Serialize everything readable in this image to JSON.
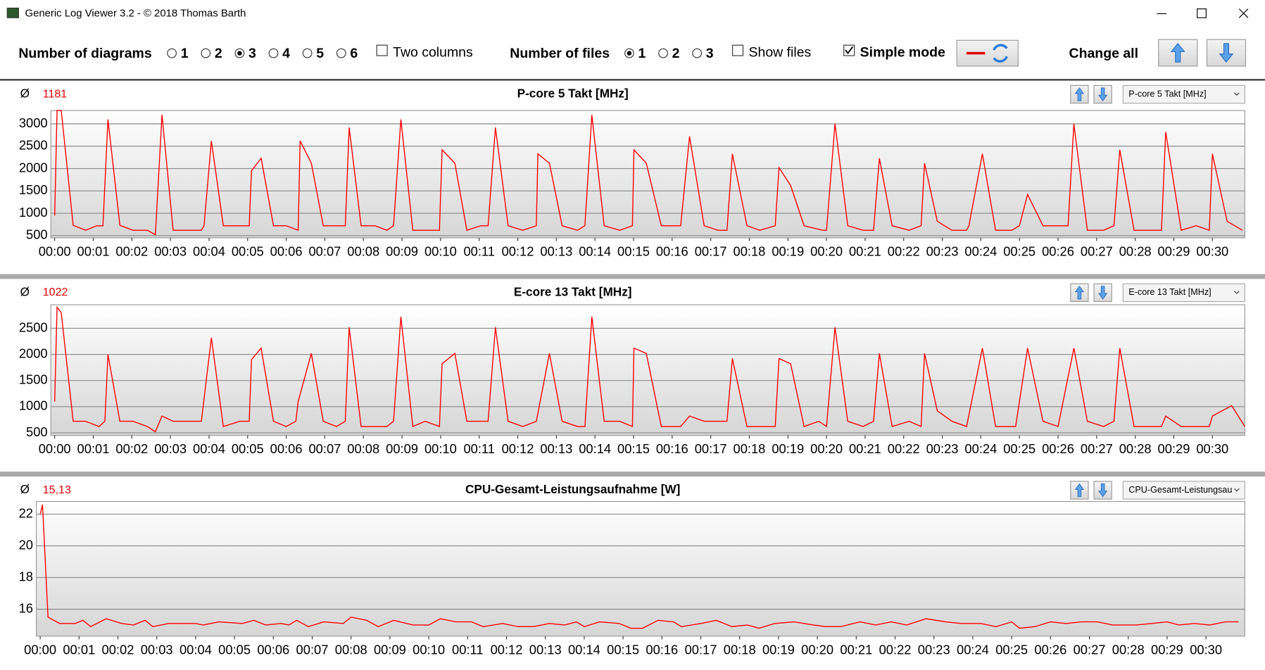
{
  "window": {
    "title": "Generic Log Viewer 3.2 - © 2018 Thomas Barth"
  },
  "toolbar": {
    "diagrams": {
      "label": "Number of diagrams",
      "options": [
        "1",
        "2",
        "3",
        "4",
        "5",
        "6"
      ],
      "selected": "3"
    },
    "two_columns": {
      "label": "Two columns",
      "checked": false
    },
    "files": {
      "label": "Number of files",
      "options": [
        "1",
        "2",
        "3"
      ],
      "selected": "1"
    },
    "show_files": {
      "label": "Show files",
      "checked": false
    },
    "simple_mode": {
      "label": "Simple mode",
      "checked": true
    },
    "change_all": "Change all"
  },
  "chart_data": [
    {
      "type": "line",
      "title": "P-core 5 Takt [MHz]",
      "avg_symbol": "Ø",
      "average": "1181",
      "selector": "P-core 5 Takt [MHz]",
      "color": "#ff0000",
      "grid": true,
      "xlim": [
        -0.1,
        30.84
      ],
      "ylim": [
        450,
        3300
      ],
      "xticks": [
        {
          "value": 0,
          "label": "00:00"
        },
        {
          "value": 1,
          "label": "00:01"
        },
        {
          "value": 2,
          "label": "00:02"
        },
        {
          "value": 3,
          "label": "00:03"
        },
        {
          "value": 4,
          "label": "00:04"
        },
        {
          "value": 5,
          "label": "00:05"
        },
        {
          "value": 6,
          "label": "00:06"
        },
        {
          "value": 7,
          "label": "00:07"
        },
        {
          "value": 8,
          "label": "00:08"
        },
        {
          "value": 9,
          "label": "00:09"
        },
        {
          "value": 10,
          "label": "00:10"
        },
        {
          "value": 11,
          "label": "00:11"
        },
        {
          "value": 12,
          "label": "00:12"
        },
        {
          "value": 13,
          "label": "00:13"
        },
        {
          "value": 14,
          "label": "00:14"
        },
        {
          "value": 15,
          "label": "00:15"
        },
        {
          "value": 16,
          "label": "00:16"
        },
        {
          "value": 17,
          "label": "00:17"
        },
        {
          "value": 18,
          "label": "00:18"
        },
        {
          "value": 19,
          "label": "00:19"
        },
        {
          "value": 20,
          "label": "00:20"
        },
        {
          "value": 21,
          "label": "00:21"
        },
        {
          "value": 22,
          "label": "00:22"
        },
        {
          "value": 23,
          "label": "00:23"
        },
        {
          "value": 24,
          "label": "00:24"
        },
        {
          "value": 25,
          "label": "00:25"
        },
        {
          "value": 26,
          "label": "00:26"
        },
        {
          "value": 27,
          "label": "00:27"
        },
        {
          "value": 28,
          "label": "00:28"
        },
        {
          "value": 29,
          "label": "00:29"
        },
        {
          "value": 30,
          "label": "00:30"
        }
      ],
      "yticks": [
        500,
        1000,
        1500,
        2000,
        2500,
        3000
      ],
      "x": [
        0,
        0.06,
        0.17,
        0.48,
        0.8,
        1.09,
        1.25,
        1.38,
        1.69,
        2.03,
        2.4,
        2.61,
        2.78,
        3.07,
        3.8,
        3.87,
        4.06,
        4.37,
        5.04,
        5.1,
        5.35,
        5.67,
        6.0,
        6.31,
        6.36,
        6.65,
        6.96,
        7.53,
        7.63,
        7.94,
        8.3,
        8.61,
        8.78,
        8.97,
        9.28,
        9.97,
        10.04,
        10.37,
        10.68,
        11.04,
        11.23,
        11.42,
        11.75,
        12.13,
        12.48,
        12.52,
        12.82,
        13.15,
        13.55,
        13.74,
        13.92,
        14.24,
        14.64,
        14.97,
        15.01,
        15.33,
        15.72,
        16.22,
        16.45,
        16.83,
        17.19,
        17.42,
        17.56,
        17.94,
        18.27,
        18.67,
        18.77,
        19.07,
        19.42,
        19.9,
        20.0,
        20.22,
        20.55,
        20.95,
        21.22,
        21.37,
        21.7,
        22.14,
        22.45,
        22.54,
        22.87,
        23.25,
        23.63,
        23.69,
        24.04,
        24.38,
        24.8,
        25.0,
        25.21,
        25.61,
        26.11,
        26.26,
        26.41,
        26.76,
        27.18,
        27.45,
        27.6,
        27.97,
        28.68,
        28.79,
        29.19,
        29.58,
        29.92,
        30.0,
        30.38,
        30.78
      ],
      "values": [
        950,
        3300,
        3300,
        730,
        620,
        720,
        720,
        3100,
        730,
        620,
        620,
        520,
        3200,
        620,
        620,
        720,
        2620,
        720,
        720,
        1950,
        2230,
        720,
        720,
        620,
        2620,
        2120,
        720,
        720,
        2920,
        720,
        720,
        620,
        720,
        3100,
        620,
        620,
        2420,
        2120,
        620,
        720,
        720,
        2920,
        720,
        620,
        720,
        2330,
        2120,
        720,
        620,
        720,
        3200,
        720,
        620,
        720,
        2420,
        2120,
        720,
        720,
        2720,
        720,
        620,
        620,
        2330,
        720,
        620,
        720,
        2020,
        1620,
        720,
        620,
        620,
        3000,
        720,
        620,
        620,
        2230,
        720,
        620,
        720,
        2120,
        820,
        620,
        620,
        720,
        2330,
        620,
        620,
        720,
        1420,
        720,
        720,
        720,
        3000,
        620,
        620,
        720,
        2420,
        620,
        620,
        2820,
        620,
        720,
        620,
        2330,
        820,
        620
      ]
    },
    {
      "type": "line",
      "title": "E-core 13 Takt [MHz]",
      "avg_symbol": "Ø",
      "average": "1022",
      "selector": "E-core 13 Takt [MHz]",
      "color": "#ff0000",
      "grid": true,
      "xlim": [
        -0.1,
        30.84
      ],
      "ylim": [
        450,
        2950
      ],
      "xticks": [
        {
          "value": 0,
          "label": "00:00"
        },
        {
          "value": 1,
          "label": "00:01"
        },
        {
          "value": 2,
          "label": "00:02"
        },
        {
          "value": 3,
          "label": "00:03"
        },
        {
          "value": 4,
          "label": "00:04"
        },
        {
          "value": 5,
          "label": "00:05"
        },
        {
          "value": 6,
          "label": "00:06"
        },
        {
          "value": 7,
          "label": "00:07"
        },
        {
          "value": 8,
          "label": "00:08"
        },
        {
          "value": 9,
          "label": "00:09"
        },
        {
          "value": 10,
          "label": "00:10"
        },
        {
          "value": 11,
          "label": "00:11"
        },
        {
          "value": 12,
          "label": "00:12"
        },
        {
          "value": 13,
          "label": "00:13"
        },
        {
          "value": 14,
          "label": "00:14"
        },
        {
          "value": 15,
          "label": "00:15"
        },
        {
          "value": 16,
          "label": "00:16"
        },
        {
          "value": 17,
          "label": "00:17"
        },
        {
          "value": 18,
          "label": "00:18"
        },
        {
          "value": 19,
          "label": "00:19"
        },
        {
          "value": 20,
          "label": "00:20"
        },
        {
          "value": 21,
          "label": "00:21"
        },
        {
          "value": 22,
          "label": "00:22"
        },
        {
          "value": 23,
          "label": "00:23"
        },
        {
          "value": 24,
          "label": "00:24"
        },
        {
          "value": 25,
          "label": "00:25"
        },
        {
          "value": 26,
          "label": "00:26"
        },
        {
          "value": 27,
          "label": "00:27"
        },
        {
          "value": 28,
          "label": "00:28"
        },
        {
          "value": 29,
          "label": "00:29"
        },
        {
          "value": 30,
          "label": "00:30"
        }
      ],
      "yticks": [
        500,
        1000,
        1500,
        2000,
        2500
      ],
      "x": [
        0,
        0.06,
        0.17,
        0.48,
        0.8,
        1.15,
        1.3,
        1.38,
        1.69,
        2.03,
        2.4,
        2.61,
        2.78,
        3.07,
        3.8,
        4.06,
        4.37,
        4.8,
        5.04,
        5.1,
        5.35,
        5.67,
        6.0,
        6.25,
        6.31,
        6.65,
        6.96,
        7.3,
        7.53,
        7.63,
        7.94,
        8.61,
        8.78,
        8.97,
        9.28,
        9.6,
        9.97,
        10.04,
        10.37,
        10.68,
        11.23,
        11.42,
        11.75,
        12.13,
        12.48,
        12.82,
        13.15,
        13.55,
        13.74,
        13.92,
        14.24,
        14.64,
        14.97,
        15.01,
        15.33,
        15.72,
        16.22,
        16.45,
        16.83,
        17.42,
        17.56,
        17.94,
        18.67,
        18.77,
        19.07,
        19.42,
        19.8,
        20.0,
        20.22,
        20.55,
        20.95,
        21.22,
        21.37,
        21.7,
        22.14,
        22.45,
        22.54,
        22.87,
        23.25,
        23.63,
        24.04,
        24.38,
        24.9,
        25.21,
        25.61,
        26.0,
        26.41,
        26.76,
        27.18,
        27.45,
        27.6,
        27.97,
        28.68,
        28.79,
        29.19,
        29.92,
        30.0,
        30.5,
        30.84
      ],
      "values": [
        1100,
        2900,
        2800,
        720,
        720,
        620,
        720,
        2000,
        720,
        720,
        620,
        520,
        820,
        720,
        720,
        2320,
        620,
        720,
        720,
        1900,
        2120,
        720,
        620,
        720,
        1100,
        2020,
        720,
        620,
        720,
        2520,
        620,
        620,
        720,
        2720,
        620,
        720,
        620,
        1820,
        2020,
        720,
        720,
        2520,
        720,
        620,
        720,
        2020,
        720,
        620,
        620,
        2720,
        720,
        720,
        620,
        2120,
        2020,
        620,
        620,
        820,
        720,
        720,
        1920,
        620,
        620,
        1920,
        1820,
        620,
        720,
        620,
        2520,
        720,
        620,
        720,
        2020,
        620,
        720,
        620,
        2020,
        920,
        720,
        620,
        2120,
        620,
        620,
        2120,
        720,
        620,
        2120,
        720,
        620,
        720,
        2120,
        620,
        620,
        820,
        620,
        620,
        820,
        1020,
        620
      ]
    },
    {
      "type": "line",
      "title": "CPU-Gesamt-Leistungsaufnahme [W]",
      "avg_symbol": "Ø",
      "average": "15,13",
      "selector": "CPU-Gesamt-Leistungsau",
      "color": "#ff0000",
      "grid": true,
      "xlim": [
        -0.1,
        31.0
      ],
      "ylim": [
        14.3,
        22.8
      ],
      "xticks": [
        {
          "value": 0,
          "label": "00:00"
        },
        {
          "value": 1,
          "label": "00:01"
        },
        {
          "value": 2,
          "label": "00:02"
        },
        {
          "value": 3,
          "label": "00:03"
        },
        {
          "value": 4,
          "label": "00:04"
        },
        {
          "value": 5,
          "label": "00:05"
        },
        {
          "value": 6,
          "label": "00:06"
        },
        {
          "value": 7,
          "label": "00:07"
        },
        {
          "value": 8,
          "label": "00:08"
        },
        {
          "value": 9,
          "label": "00:09"
        },
        {
          "value": 10,
          "label": "00:10"
        },
        {
          "value": 11,
          "label": "00:11"
        },
        {
          "value": 12,
          "label": "00:12"
        },
        {
          "value": 13,
          "label": "00:13"
        },
        {
          "value": 14,
          "label": "00:14"
        },
        {
          "value": 15,
          "label": "00:15"
        },
        {
          "value": 16,
          "label": "00:16"
        },
        {
          "value": 17,
          "label": "00:17"
        },
        {
          "value": 18,
          "label": "00:18"
        },
        {
          "value": 19,
          "label": "00:19"
        },
        {
          "value": 20,
          "label": "00:20"
        },
        {
          "value": 21,
          "label": "00:21"
        },
        {
          "value": 22,
          "label": "00:22"
        },
        {
          "value": 23,
          "label": "00:23"
        },
        {
          "value": 24,
          "label": "00:24"
        },
        {
          "value": 25,
          "label": "00:25"
        },
        {
          "value": 26,
          "label": "00:26"
        },
        {
          "value": 27,
          "label": "00:27"
        },
        {
          "value": 28,
          "label": "00:28"
        },
        {
          "value": 29,
          "label": "00:29"
        },
        {
          "value": 30,
          "label": "00:30"
        }
      ],
      "yticks": [
        16,
        18,
        20,
        22
      ],
      "x": [
        0,
        0.06,
        0.2,
        0.5,
        0.9,
        1.1,
        1.3,
        1.7,
        2.1,
        2.4,
        2.7,
        2.9,
        3.3,
        4.0,
        4.2,
        4.6,
        5.2,
        5.5,
        5.8,
        6.2,
        6.4,
        6.6,
        6.9,
        7.3,
        7.8,
        8.0,
        8.4,
        8.7,
        9.1,
        9.6,
        10.0,
        10.3,
        10.7,
        11.1,
        11.4,
        11.9,
        12.3,
        12.7,
        13.1,
        13.5,
        13.8,
        14.0,
        14.4,
        14.9,
        15.2,
        15.5,
        15.9,
        16.3,
        16.5,
        17.0,
        17.4,
        17.8,
        18.2,
        18.5,
        18.9,
        19.4,
        19.9,
        20.2,
        20.6,
        21.1,
        21.5,
        21.9,
        22.3,
        22.8,
        23.3,
        23.7,
        24.2,
        24.6,
        25.0,
        25.2,
        25.6,
        26.0,
        26.4,
        26.8,
        27.2,
        27.6,
        28.2,
        28.6,
        29.0,
        29.3,
        29.7,
        30.1,
        30.5,
        30.84
      ],
      "values": [
        22,
        22.6,
        15.5,
        15.1,
        15.1,
        15.3,
        14.9,
        15.4,
        15.1,
        15.0,
        15.3,
        14.9,
        15.1,
        15.1,
        15.0,
        15.2,
        15.1,
        15.3,
        15.0,
        15.1,
        15.0,
        15.3,
        14.9,
        15.2,
        15.1,
        15.5,
        15.3,
        14.9,
        15.3,
        15.0,
        15.0,
        15.4,
        15.2,
        15.2,
        14.9,
        15.1,
        14.9,
        14.9,
        15.1,
        15.0,
        15.2,
        14.9,
        15.2,
        15.1,
        14.8,
        14.8,
        15.3,
        15.2,
        14.9,
        15.1,
        15.3,
        14.9,
        15.0,
        14.8,
        15.1,
        15.2,
        15.0,
        14.9,
        14.9,
        15.2,
        15.0,
        15.2,
        15.0,
        15.4,
        15.2,
        15.1,
        15.1,
        14.9,
        15.2,
        14.8,
        14.9,
        15.2,
        15.1,
        15.2,
        15.2,
        15.0,
        15.0,
        15.1,
        15.2,
        15.0,
        15.1,
        15.0,
        15.2,
        15.2
      ]
    }
  ]
}
